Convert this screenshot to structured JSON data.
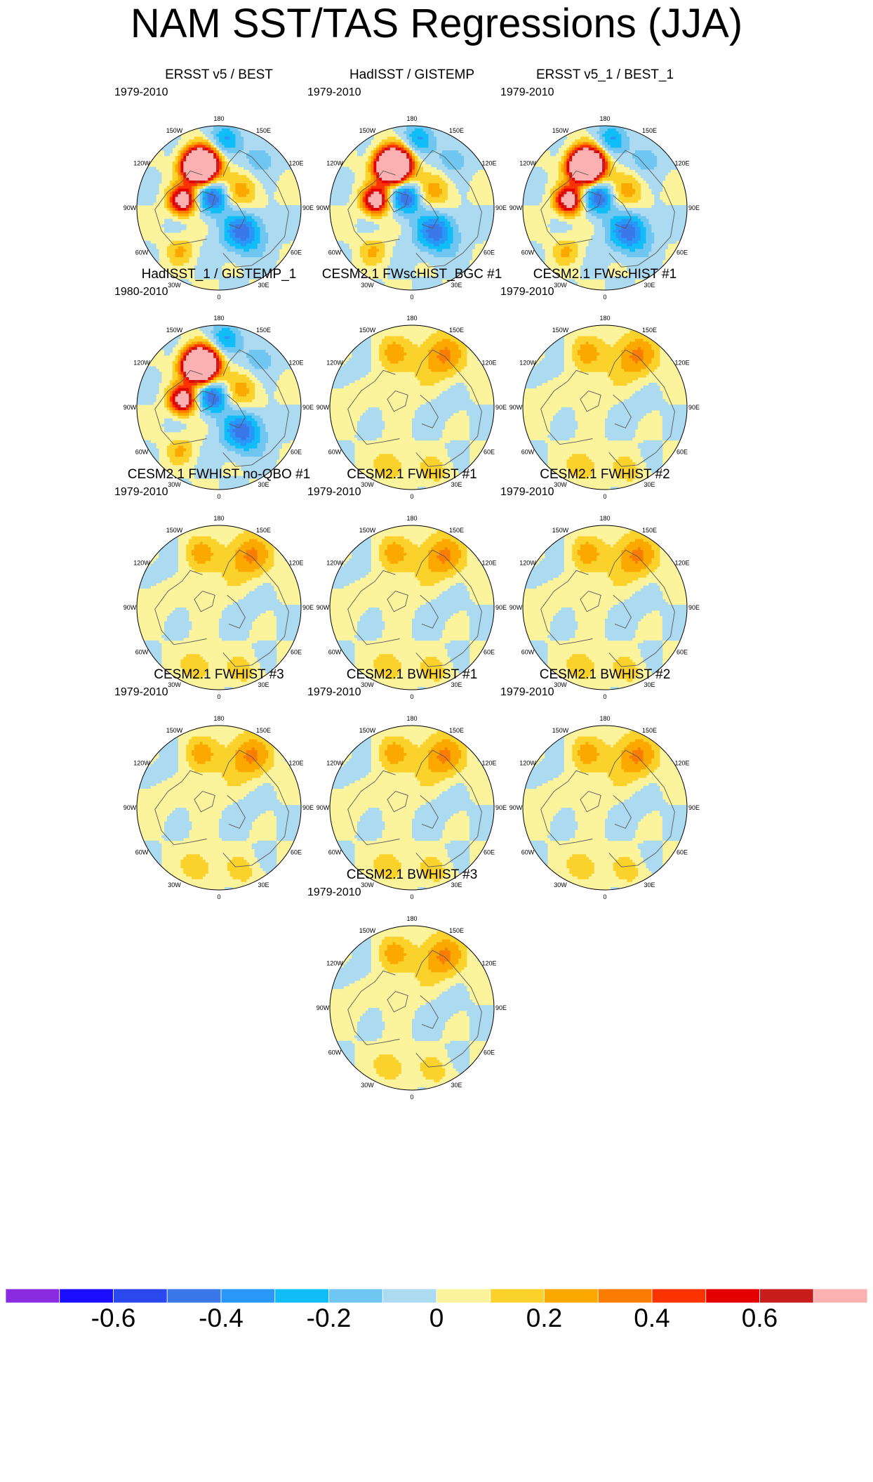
{
  "title": "NAM SST/TAS Regressions (JJA)",
  "chart_data": {
    "type": "heatmap",
    "projection": "north polar stereographic",
    "longitude_labels": [
      "180",
      "150E",
      "120E",
      "90E",
      "60E",
      "30E",
      "0",
      "30W",
      "60W",
      "90W",
      "120W",
      "150W"
    ],
    "panels": [
      {
        "title": "ERSST v5 / BEST",
        "period": "1979-2010",
        "pattern": "obs",
        "blobs": [
          [
            200,
            0.55,
            0.22,
            0.55,
            0.14,
            0.45
          ],
          [
            205,
            0.55,
            0.2,
            0.8,
            0.12,
            0.3
          ],
          [
            258,
            0.45,
            0.2,
            0.95,
            0.11,
            0.32
          ],
          [
            205,
            0.58,
            0.2,
            0.9,
            0.14,
            0.35
          ],
          [
            45,
            0.42,
            0.2,
            -0.45,
            0.18,
            0.55
          ],
          [
            210,
            0.15,
            0.2,
            -0.5,
            0.14,
            0.15
          ],
          [
            125,
            0.33,
            0.16,
            0.25,
            0.16,
            0.2
          ],
          [
            175,
            0.85,
            0.2,
            -0.3,
            0.13,
            0.35
          ],
          [
            318,
            0.7,
            0.14,
            0.2,
            0.12,
            0.2
          ],
          [
            140,
            0.78,
            0.18,
            -0.2,
            0.13,
            0.4
          ]
        ]
      },
      {
        "title": "HadISST / GISTEMP",
        "period": "1979-2010",
        "pattern": "obs",
        "blobs": [
          [
            200,
            0.55,
            0.22,
            0.55,
            0.14,
            0.45
          ],
          [
            205,
            0.55,
            0.2,
            0.8,
            0.12,
            0.3
          ],
          [
            258,
            0.45,
            0.2,
            0.95,
            0.11,
            0.32
          ],
          [
            205,
            0.58,
            0.2,
            0.9,
            0.14,
            0.35
          ],
          [
            45,
            0.42,
            0.2,
            -0.45,
            0.18,
            0.55
          ],
          [
            210,
            0.15,
            0.2,
            -0.5,
            0.14,
            0.15
          ],
          [
            125,
            0.33,
            0.16,
            0.25,
            0.16,
            0.2
          ],
          [
            175,
            0.85,
            0.2,
            -0.3,
            0.13,
            0.35
          ],
          [
            318,
            0.7,
            0.14,
            0.2,
            0.12,
            0.2
          ],
          [
            140,
            0.78,
            0.18,
            -0.2,
            0.13,
            0.4
          ]
        ]
      },
      {
        "title": "ERSST v5_1 / BEST_1",
        "period": "1979-2010",
        "pattern": "obs",
        "blobs": [
          [
            200,
            0.55,
            0.22,
            0.55,
            0.14,
            0.45
          ],
          [
            205,
            0.55,
            0.2,
            0.8,
            0.12,
            0.3
          ],
          [
            258,
            0.45,
            0.2,
            0.95,
            0.11,
            0.32
          ],
          [
            205,
            0.58,
            0.2,
            0.9,
            0.14,
            0.35
          ],
          [
            45,
            0.42,
            0.2,
            -0.45,
            0.18,
            0.55
          ],
          [
            210,
            0.15,
            0.2,
            -0.5,
            0.14,
            0.15
          ],
          [
            125,
            0.33,
            0.16,
            0.25,
            0.16,
            0.2
          ],
          [
            175,
            0.85,
            0.2,
            -0.3,
            0.13,
            0.35
          ],
          [
            318,
            0.7,
            0.14,
            0.2,
            0.12,
            0.2
          ],
          [
            140,
            0.78,
            0.18,
            -0.2,
            0.13,
            0.4
          ]
        ]
      },
      {
        "title": "HadISST_1 / GISTEMP_1",
        "period": "1980-2010",
        "pattern": "obs",
        "blobs": [
          [
            200,
            0.55,
            0.22,
            0.55,
            0.14,
            0.45
          ],
          [
            205,
            0.55,
            0.2,
            0.8,
            0.12,
            0.3
          ],
          [
            258,
            0.45,
            0.2,
            0.95,
            0.11,
            0.32
          ],
          [
            205,
            0.58,
            0.2,
            0.9,
            0.14,
            0.35
          ],
          [
            45,
            0.42,
            0.2,
            -0.45,
            0.18,
            0.55
          ],
          [
            210,
            0.15,
            0.2,
            -0.5,
            0.14,
            0.15
          ],
          [
            125,
            0.33,
            0.16,
            0.25,
            0.16,
            0.2
          ],
          [
            175,
            0.85,
            0.2,
            -0.3,
            0.13,
            0.35
          ],
          [
            318,
            0.7,
            0.14,
            0.2,
            0.12,
            0.2
          ],
          [
            140,
            0.78,
            0.18,
            -0.2,
            0.13,
            0.4
          ]
        ]
      },
      {
        "title": "CESM2.1 FWscHIST_BGC #1",
        "period": "",
        "pattern": "model",
        "blobs": [
          [
            150,
            0.72,
            0.5,
            0.32,
            0.2,
            0.4
          ],
          [
            200,
            0.7,
            0.32,
            0.22,
            0.16,
            0.3
          ],
          [
            230,
            0.75,
            0.4,
            -0.05,
            0.15,
            0.3
          ],
          [
            265,
            0.8,
            0.18,
            0.1,
            0.15,
            0.2
          ],
          [
            340,
            0.75,
            0.35,
            0.2,
            0.14,
            0.2
          ],
          [
            90,
            0.4,
            0.18,
            -0.05,
            0.15,
            0.3
          ],
          [
            20,
            0.82,
            0.22,
            0.15,
            0.14,
            0.2
          ],
          [
            200,
            0.3,
            0.12,
            0.05,
            0.2,
            0.2
          ]
        ]
      },
      {
        "title": "CESM2.1 FWscHIST #1",
        "period": "1979-2010",
        "pattern": "model",
        "blobs": [
          [
            150,
            0.72,
            0.5,
            0.32,
            0.2,
            0.4
          ],
          [
            200,
            0.7,
            0.32,
            0.22,
            0.16,
            0.3
          ],
          [
            230,
            0.75,
            0.4,
            -0.05,
            0.15,
            0.3
          ],
          [
            265,
            0.8,
            0.18,
            0.1,
            0.15,
            0.2
          ],
          [
            340,
            0.75,
            0.35,
            0.2,
            0.14,
            0.2
          ],
          [
            90,
            0.4,
            0.18,
            -0.05,
            0.15,
            0.3
          ],
          [
            20,
            0.82,
            0.22,
            0.15,
            0.14,
            0.2
          ],
          [
            200,
            0.3,
            0.12,
            0.05,
            0.2,
            0.2
          ]
        ]
      },
      {
        "title": "CESM2.1 FWHIST no-QBO #1",
        "period": "1979-2010",
        "pattern": "model",
        "blobs": [
          [
            150,
            0.72,
            0.5,
            0.32,
            0.2,
            0.4
          ],
          [
            200,
            0.7,
            0.32,
            0.22,
            0.16,
            0.3
          ],
          [
            230,
            0.75,
            0.4,
            -0.05,
            0.15,
            0.3
          ],
          [
            265,
            0.8,
            0.18,
            0.1,
            0.15,
            0.2
          ],
          [
            340,
            0.75,
            0.35,
            0.2,
            0.14,
            0.2
          ],
          [
            90,
            0.4,
            0.18,
            -0.05,
            0.15,
            0.3
          ],
          [
            20,
            0.82,
            0.22,
            0.15,
            0.14,
            0.2
          ],
          [
            200,
            0.3,
            0.12,
            0.05,
            0.2,
            0.2
          ]
        ]
      },
      {
        "title": "CESM2.1 FWHIST #1",
        "period": "1979-2010",
        "pattern": "model",
        "blobs": [
          [
            150,
            0.72,
            0.5,
            0.32,
            0.2,
            0.4
          ],
          [
            200,
            0.7,
            0.32,
            0.22,
            0.16,
            0.3
          ],
          [
            230,
            0.75,
            0.4,
            -0.05,
            0.15,
            0.3
          ],
          [
            265,
            0.8,
            0.18,
            0.1,
            0.15,
            0.2
          ],
          [
            340,
            0.75,
            0.35,
            0.2,
            0.14,
            0.2
          ],
          [
            90,
            0.4,
            0.18,
            -0.05,
            0.15,
            0.3
          ],
          [
            20,
            0.82,
            0.22,
            0.15,
            0.14,
            0.2
          ],
          [
            200,
            0.3,
            0.12,
            0.05,
            0.2,
            0.2
          ]
        ]
      },
      {
        "title": "CESM2.1 FWHIST #2",
        "period": "1979-2010",
        "pattern": "model",
        "blobs": [
          [
            150,
            0.72,
            0.5,
            0.32,
            0.2,
            0.4
          ],
          [
            200,
            0.7,
            0.32,
            0.22,
            0.16,
            0.3
          ],
          [
            230,
            0.75,
            0.4,
            -0.05,
            0.15,
            0.3
          ],
          [
            265,
            0.8,
            0.18,
            0.1,
            0.15,
            0.2
          ],
          [
            340,
            0.75,
            0.35,
            0.2,
            0.14,
            0.2
          ],
          [
            90,
            0.4,
            0.18,
            -0.05,
            0.15,
            0.3
          ],
          [
            20,
            0.82,
            0.22,
            0.15,
            0.14,
            0.2
          ],
          [
            200,
            0.3,
            0.12,
            0.05,
            0.2,
            0.2
          ]
        ]
      },
      {
        "title": "CESM2.1 FWHIST #3",
        "period": "1979-2010",
        "pattern": "model",
        "blobs": [
          [
            150,
            0.72,
            0.5,
            0.32,
            0.2,
            0.4
          ],
          [
            200,
            0.7,
            0.32,
            0.22,
            0.16,
            0.3
          ],
          [
            230,
            0.75,
            0.4,
            -0.05,
            0.15,
            0.3
          ],
          [
            265,
            0.8,
            0.18,
            0.1,
            0.15,
            0.2
          ],
          [
            340,
            0.75,
            0.35,
            0.2,
            0.14,
            0.2
          ],
          [
            90,
            0.4,
            0.18,
            -0.05,
            0.15,
            0.3
          ],
          [
            20,
            0.82,
            0.22,
            0.15,
            0.14,
            0.2
          ],
          [
            200,
            0.3,
            0.12,
            0.05,
            0.2,
            0.2
          ]
        ]
      },
      {
        "title": "CESM2.1 BWHIST #1",
        "period": "1979-2010",
        "pattern": "model",
        "blobs": [
          [
            150,
            0.72,
            0.5,
            0.32,
            0.2,
            0.4
          ],
          [
            200,
            0.7,
            0.32,
            0.22,
            0.16,
            0.3
          ],
          [
            230,
            0.75,
            0.4,
            -0.05,
            0.15,
            0.3
          ],
          [
            265,
            0.8,
            0.18,
            0.1,
            0.15,
            0.2
          ],
          [
            340,
            0.75,
            0.35,
            0.2,
            0.14,
            0.2
          ],
          [
            90,
            0.4,
            0.18,
            -0.05,
            0.15,
            0.3
          ],
          [
            20,
            0.82,
            0.22,
            0.15,
            0.14,
            0.2
          ],
          [
            200,
            0.3,
            0.12,
            0.05,
            0.2,
            0.2
          ]
        ]
      },
      {
        "title": "CESM2.1 BWHIST #2",
        "period": "1979-2010",
        "pattern": "model",
        "blobs": [
          [
            150,
            0.72,
            0.5,
            0.32,
            0.2,
            0.4
          ],
          [
            200,
            0.7,
            0.32,
            0.22,
            0.16,
            0.3
          ],
          [
            230,
            0.75,
            0.4,
            -0.05,
            0.15,
            0.3
          ],
          [
            265,
            0.8,
            0.18,
            0.1,
            0.15,
            0.2
          ],
          [
            340,
            0.75,
            0.35,
            0.2,
            0.14,
            0.2
          ],
          [
            90,
            0.4,
            0.18,
            -0.05,
            0.15,
            0.3
          ],
          [
            20,
            0.82,
            0.22,
            0.15,
            0.14,
            0.2
          ],
          [
            200,
            0.3,
            0.12,
            0.05,
            0.2,
            0.2
          ]
        ]
      },
      {
        "title": "CESM2.1 BWHIST #3",
        "period": "1979-2010",
        "pattern": "model",
        "blobs": [
          [
            150,
            0.72,
            0.5,
            0.32,
            0.2,
            0.4
          ],
          [
            200,
            0.7,
            0.32,
            0.22,
            0.16,
            0.3
          ],
          [
            230,
            0.75,
            0.4,
            -0.05,
            0.15,
            0.3
          ],
          [
            265,
            0.8,
            0.18,
            0.1,
            0.15,
            0.2
          ],
          [
            340,
            0.75,
            0.35,
            0.2,
            0.14,
            0.2
          ],
          [
            90,
            0.4,
            0.18,
            -0.05,
            0.15,
            0.3
          ],
          [
            20,
            0.82,
            0.22,
            0.15,
            0.14,
            0.2
          ],
          [
            200,
            0.3,
            0.12,
            0.05,
            0.2,
            0.2
          ]
        ]
      }
    ],
    "colorbar": {
      "min": -0.8,
      "max": 0.8,
      "step": 0.1,
      "colors": [
        "#8a2be2",
        "#1c0dff",
        "#2b48ee",
        "#3a78ea",
        "#2997f7",
        "#11bdf7",
        "#6fc6f0",
        "#acdaf1",
        "#fcf49d",
        "#fbd22b",
        "#fba800",
        "#fa7c00",
        "#fa3300",
        "#e40000",
        "#c81d1d",
        "#fbb1b1"
      ],
      "tick_labels": [
        "-0.6",
        "-0.4",
        "-0.2",
        "0",
        "0.2",
        "0.4",
        "0.6"
      ],
      "tick_values": [
        -0.6,
        -0.4,
        -0.2,
        0,
        0.2,
        0.4,
        0.6
      ]
    }
  }
}
